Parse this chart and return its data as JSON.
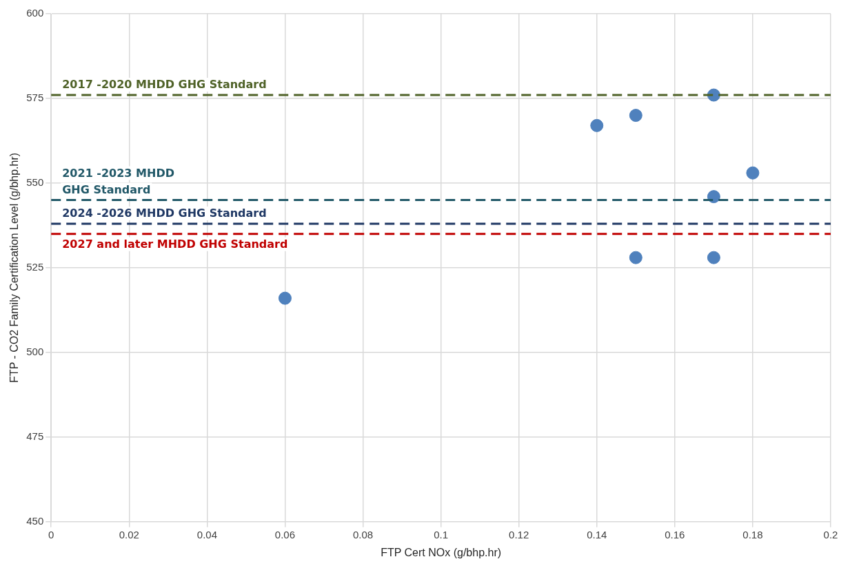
{
  "chart_data": {
    "type": "scatter",
    "xlabel": "FTP Cert NOx (g/bhp.hr)",
    "ylabel": "FTP - CO2 Family Certification Level (g/bhp.hr)",
    "x": [
      0.06,
      0.14,
      0.15,
      0.15,
      0.17,
      0.17,
      0.17,
      0.18
    ],
    "values": [
      516,
      567,
      570,
      528,
      576,
      546,
      528,
      553
    ],
    "color": "#4f81bd",
    "marker": "circle",
    "xlim": [
      0,
      0.2
    ],
    "xticks": [
      0,
      0.02,
      0.04,
      0.06,
      0.08,
      0.1,
      0.12,
      0.14,
      0.16,
      0.18,
      0.2
    ],
    "ylim": [
      450,
      600
    ],
    "yticks": [
      450,
      475,
      500,
      525,
      550,
      575,
      600
    ],
    "grid": true,
    "legend": false,
    "ref_lines": [
      {
        "axis": "y",
        "value": 576,
        "label": "2017 -2020 MHDD GHG Standard",
        "color": "#4f6228",
        "line_style": "dashed"
      },
      {
        "axis": "y",
        "value": 545,
        "label": "2021 -2023 MHDD\nGHG Standard",
        "color": "#215868",
        "line_style": "dashed"
      },
      {
        "axis": "y",
        "value": 538,
        "label": "2024 -2026 MHDD GHG Standard",
        "color": "#1f3864",
        "line_style": "dashed"
      },
      {
        "axis": "y",
        "value": 535,
        "label": "2027 and later MHDD GHG Standard",
        "color": "#c00000",
        "line_style": "dashed"
      }
    ]
  }
}
